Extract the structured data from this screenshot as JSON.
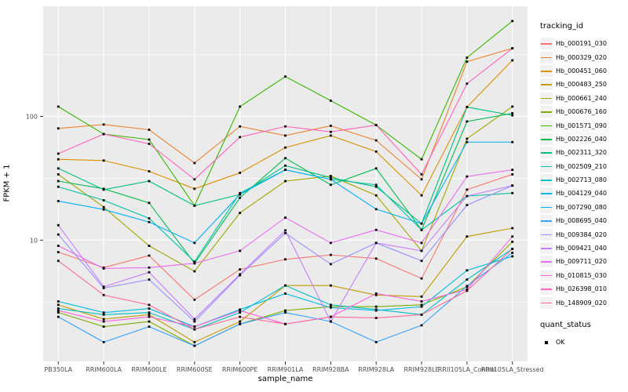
{
  "chart_data": {
    "type": "line",
    "title": "",
    "xlabel": "sample_name",
    "ylabel": "FPKM + 1",
    "y_scale": "log10",
    "y_tick_labels": [
      "100",
      "10"
    ],
    "y_tick_values": [
      100,
      10
    ],
    "y_minor_values": [
      3.162,
      31.62,
      316.2
    ],
    "ylim_log10": [
      0.02,
      2.89
    ],
    "grid": true,
    "legend_position": "right",
    "marker": "black-square",
    "panel_bg": "#EBEBEB",
    "grid_color": "#FFFFFF",
    "axis_text_color": "#4D4D4D",
    "categories": [
      "PB350LA",
      "RRIM600LA",
      "RRIM600LE",
      "RRIM600SE",
      "RRIM600PE",
      "RRIM901LA",
      "RRIM928BA",
      "RRIM928LA",
      "RRIM928LE",
      "RRII105LA_Control",
      "RRII105LA_Stressed"
    ],
    "series": [
      {
        "name": "Hb_000191_030",
        "color": "#F8766D",
        "values": [
          8,
          6,
          7.5,
          3.3,
          5.8,
          7,
          7.6,
          7.1,
          4.9,
          25.6,
          34
        ]
      },
      {
        "name": "Hb_000329_020",
        "color": "#EA8331",
        "values": [
          80,
          86,
          78,
          42,
          83,
          70,
          84,
          64,
          31,
          277,
          355
        ]
      },
      {
        "name": "Hb_000451_060",
        "color": "#D89000",
        "values": [
          45,
          44,
          36,
          26,
          35,
          56,
          70,
          52,
          23,
          119,
          284
        ]
      },
      {
        "name": "Hb_000483_250",
        "color": "#C09B00",
        "values": [
          3,
          2.3,
          2.5,
          1.5,
          2.2,
          4.3,
          4.3,
          3.6,
          3.5,
          10.7,
          12.5
        ]
      },
      {
        "name": "Hb_000661_240",
        "color": "#A3A500",
        "values": [
          34,
          18.5,
          9,
          5.6,
          16.6,
          30,
          33,
          23,
          8.2,
          66,
          120
        ]
      },
      {
        "name": "Hb_000676_160",
        "color": "#7CAE00",
        "values": [
          2.6,
          2,
          2.2,
          1.4,
          2.1,
          2.7,
          2.9,
          2.9,
          3,
          4.2,
          9.7
        ]
      },
      {
        "name": "Hb_001571_090",
        "color": "#39B600",
        "values": [
          120,
          72,
          65,
          19,
          120,
          210,
          134,
          85,
          45,
          298,
          590
        ]
      },
      {
        "name": "Hb_002226_040",
        "color": "#00BB4E",
        "values": [
          30,
          26,
          20,
          6.5,
          22,
          46,
          28,
          38,
          12.1,
          91,
          106
        ]
      },
      {
        "name": "Hb_002311_320",
        "color": "#00BF7D",
        "values": [
          38,
          25.6,
          30,
          19,
          23.4,
          40,
          32,
          27,
          13.6,
          119,
          102
        ]
      },
      {
        "name": "Hb_002509_210",
        "color": "#00C1A3",
        "values": [
          27,
          21,
          15,
          6.7,
          24,
          37,
          31,
          28,
          12.1,
          22.7,
          24
        ]
      },
      {
        "name": "Hb_002713_080",
        "color": "#00BFC4",
        "values": [
          2.8,
          2.5,
          2.6,
          1.9,
          2.6,
          4.3,
          3,
          2.75,
          2.5,
          4.8,
          8.5
        ]
      },
      {
        "name": "Hb_004129_040",
        "color": "#00BAE0",
        "values": [
          3.2,
          2.6,
          2.8,
          2,
          2.75,
          3.7,
          2.85,
          2.7,
          2.9,
          5.7,
          7.4
        ]
      },
      {
        "name": "Hb_007290_080",
        "color": "#00B0F6",
        "values": [
          20.7,
          17.7,
          14,
          9.5,
          23.4,
          37,
          31,
          17.8,
          13.6,
          62,
          62
        ]
      },
      {
        "name": "Hb_008695_040",
        "color": "#35A2FF",
        "values": [
          2.4,
          1.5,
          2,
          1.4,
          2.1,
          2.6,
          2.2,
          1.5,
          2.05,
          4.26,
          7.9
        ]
      },
      {
        "name": "Hb_009384_020",
        "color": "#9590FF",
        "values": [
          11.1,
          4.1,
          4.8,
          2.2,
          5.2,
          11.4,
          6.4,
          9.5,
          6.8,
          19.2,
          27.6
        ]
      },
      {
        "name": "Hb_009421_040",
        "color": "#C77CFF",
        "values": [
          13.2,
          4.2,
          5.5,
          2.3,
          5.3,
          12,
          2.2,
          9.5,
          8.2,
          22.7,
          27.6
        ]
      },
      {
        "name": "Hb_009711_020",
        "color": "#E76BF3",
        "values": [
          9,
          5.9,
          6,
          6.5,
          8.2,
          15.2,
          9.5,
          12.1,
          9.5,
          32.7,
          37
        ]
      },
      {
        "name": "Hb_010815_030",
        "color": "#FA62DB",
        "values": [
          2.7,
          2.2,
          2.4,
          2,
          2.7,
          2.1,
          2.4,
          3.7,
          3.2,
          4,
          10.7
        ]
      },
      {
        "name": "Hb_026398_010",
        "color": "#FF62BC",
        "values": [
          50,
          72,
          60,
          31,
          68,
          83,
          75,
          85,
          34,
          184,
          355
        ]
      },
      {
        "name": "Hb_148909_020",
        "color": "#FF6A98",
        "values": [
          6.8,
          3.6,
          3,
          1.9,
          2.4,
          2.1,
          2.4,
          2.35,
          2.5,
          3.9,
          8.5
        ]
      }
    ],
    "legend": {
      "color_title": "tracking_id",
      "shape_title": "quant_status",
      "shape_items": [
        {
          "label": "OK"
        }
      ]
    }
  }
}
